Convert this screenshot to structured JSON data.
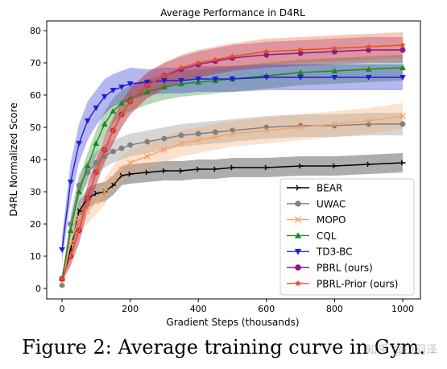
{
  "chart_data": {
    "type": "line",
    "title": "Average Performance in D4RL",
    "xlabel": "Gradient Steps (thousands)",
    "ylabel": "D4RL Normalized Score",
    "xlim": [
      0,
      1000
    ],
    "ylim": [
      0,
      80
    ],
    "xticks": [
      0,
      200,
      400,
      600,
      800,
      1000
    ],
    "yticks": [
      0,
      10,
      20,
      30,
      40,
      50,
      60,
      70,
      80
    ],
    "grid": false,
    "legend_position": "lower-right",
    "x": [
      0,
      25,
      50,
      75,
      100,
      125,
      150,
      175,
      200,
      250,
      300,
      350,
      400,
      450,
      500,
      600,
      700,
      800,
      900,
      1000
    ],
    "series": [
      {
        "name": "BEAR",
        "color": "#000000",
        "marker": "tri_right",
        "values": [
          3,
          12,
          24,
          28,
          29.5,
          30,
          32,
          35,
          35.5,
          36,
          36.5,
          36.5,
          37,
          37,
          37.5,
          37.5,
          38,
          38,
          38.5,
          39
        ],
        "band": [
          1.5,
          2,
          3,
          3,
          3,
          3,
          3,
          3,
          3,
          3,
          3,
          3,
          3,
          3,
          3,
          3,
          3,
          3,
          3,
          3
        ]
      },
      {
        "name": "UWAC",
        "color": "#808080",
        "marker": "hexagon",
        "values": [
          1,
          20,
          32,
          36,
          39,
          41,
          42.5,
          43.5,
          44.5,
          45.5,
          46.5,
          47.5,
          48,
          48.5,
          49,
          50,
          50.5,
          50.5,
          51,
          51
        ],
        "band": [
          1,
          3,
          3.5,
          3.5,
          3.5,
          3.5,
          3.5,
          3.5,
          3.5,
          3.5,
          3.5,
          3.5,
          3.5,
          3.5,
          3.5,
          3.5,
          3.5,
          3.5,
          3.5,
          3.5
        ]
      },
      {
        "name": "MOPO",
        "color": "#f4a46a",
        "marker": "x",
        "values": [
          2,
          14,
          22,
          24,
          27,
          30,
          34,
          37,
          39,
          41,
          43,
          45,
          46,
          47,
          48,
          49,
          50,
          51,
          52,
          53.5
        ],
        "band": [
          1,
          3,
          4,
          4,
          4,
          4,
          4,
          4,
          4,
          4,
          4,
          4,
          4,
          4,
          4,
          4,
          4,
          4,
          4,
          4
        ]
      },
      {
        "name": "CQL",
        "color": "#1e8a1e",
        "marker": "triangle-up",
        "values": [
          3,
          18,
          30,
          38,
          45,
          51,
          55,
          57.5,
          59,
          61,
          62.5,
          63.5,
          64,
          64.5,
          65,
          66,
          67,
          67.5,
          68,
          68.5
        ],
        "band": [
          1,
          3,
          4,
          4,
          4,
          4,
          4,
          4,
          4,
          4,
          4,
          4,
          4,
          4,
          4,
          4,
          4,
          4,
          4,
          4
        ]
      },
      {
        "name": "TD3-BC",
        "color": "#1f1fd0",
        "marker": "triangle-down",
        "values": [
          12,
          33,
          45,
          52,
          56,
          59.5,
          61.5,
          62.5,
          63.5,
          64,
          64.5,
          64.5,
          65,
          65,
          65,
          65.5,
          65.5,
          65.5,
          65.5,
          65.5
        ],
        "band": [
          4,
          6,
          6,
          6,
          5.5,
          5.5,
          5,
          5,
          5,
          4,
          4,
          4,
          4,
          4,
          4,
          4,
          4,
          4,
          4,
          4
        ]
      },
      {
        "name": "PBRL (ours)",
        "color": "#8a1a8a",
        "marker": "circle",
        "values": [
          3,
          10,
          18,
          28,
          36,
          43,
          49,
          54,
          58,
          63,
          66,
          68,
          69.5,
          70.5,
          71.5,
          72.5,
          73,
          73.5,
          74,
          74
        ],
        "band": [
          1,
          3,
          4,
          4,
          4,
          4,
          4,
          4,
          4,
          4,
          4,
          4,
          4,
          4,
          4,
          4,
          4,
          4,
          4,
          4
        ]
      },
      {
        "name": "PBRL-Prior (ours)",
        "color": "#e8501e",
        "marker": "star",
        "values": [
          3,
          10,
          18,
          28,
          36,
          43,
          49,
          54,
          58,
          63,
          66,
          68.5,
          70,
          71,
          72,
          73.5,
          74,
          74.5,
          75,
          75.5
        ],
        "band": [
          1,
          3,
          4,
          4,
          4,
          4,
          4,
          4,
          4,
          4,
          4,
          4,
          4,
          4,
          4,
          4,
          4,
          4,
          4,
          4
        ]
      }
    ]
  },
  "caption": "Figure 2: Average training curve in Gym.",
  "watermark": "知乎 @白羽泽"
}
